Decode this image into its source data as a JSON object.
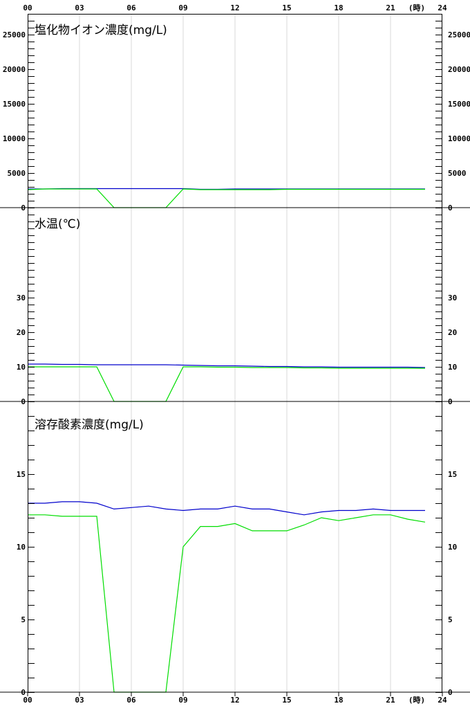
{
  "chart_data": [
    {
      "type": "line",
      "title": "塩化物イオン濃度(mg/L)",
      "ylim": [
        0,
        28000
      ],
      "yticks": [
        "0",
        "5000",
        "10000",
        "15000",
        "20000",
        "25000"
      ],
      "x_unit": "(時)",
      "series": [
        {
          "color": "#0000cc",
          "x": [
            0,
            1,
            2,
            3,
            4,
            5,
            6,
            7,
            8,
            9,
            10,
            11,
            12,
            13,
            14,
            15,
            16,
            17,
            18,
            19,
            20,
            21,
            22,
            23
          ],
          "values": [
            2700,
            2700,
            2750,
            2750,
            2750,
            2750,
            2750,
            2750,
            2750,
            2750,
            2650,
            2650,
            2700,
            2700,
            2700,
            2700,
            2700,
            2700,
            2700,
            2700,
            2700,
            2700,
            2700,
            2700
          ]
        },
        {
          "color": "#00dd00",
          "x": [
            0,
            1,
            2,
            3,
            4,
            5,
            6,
            7,
            8,
            9,
            10,
            11,
            12,
            13,
            14,
            15,
            16,
            17,
            18,
            19,
            20,
            21,
            22,
            23
          ],
          "values": [
            2600,
            2700,
            2700,
            2700,
            2700,
            0,
            0,
            0,
            0,
            2700,
            2600,
            2600,
            2600,
            2600,
            2600,
            2650,
            2650,
            2650,
            2650,
            2650,
            2650,
            2650,
            2650,
            2650
          ]
        }
      ]
    },
    {
      "type": "line",
      "title": "水温(℃)",
      "ylim": [
        0,
        56
      ],
      "yticks": [
        "0",
        "10",
        "20",
        "30"
      ],
      "x_unit": "(時)",
      "series": [
        {
          "color": "#0000cc",
          "x": [
            0,
            1,
            2,
            3,
            4,
            5,
            6,
            7,
            8,
            9,
            10,
            11,
            12,
            13,
            14,
            15,
            16,
            17,
            18,
            19,
            20,
            21,
            22,
            23
          ],
          "values": [
            10.8,
            10.8,
            10.7,
            10.7,
            10.6,
            10.6,
            10.6,
            10.6,
            10.6,
            10.5,
            10.4,
            10.3,
            10.3,
            10.2,
            10.1,
            10.1,
            10.0,
            10.0,
            9.9,
            9.9,
            9.9,
            9.9,
            9.9,
            9.8
          ]
        },
        {
          "color": "#00dd00",
          "x": [
            0,
            1,
            2,
            3,
            4,
            5,
            6,
            7,
            8,
            9,
            10,
            11,
            12,
            13,
            14,
            15,
            16,
            17,
            18,
            19,
            20,
            21,
            22,
            23
          ],
          "values": [
            10.0,
            10.0,
            10.0,
            10.0,
            10.0,
            0,
            0,
            0,
            0,
            10.0,
            10.0,
            9.9,
            9.9,
            9.8,
            9.8,
            9.8,
            9.7,
            9.7,
            9.6,
            9.6,
            9.6,
            9.6,
            9.6,
            9.6
          ]
        }
      ]
    },
    {
      "type": "line",
      "title": "溶存酸素濃度(mg/L)",
      "ylim": [
        0,
        20
      ],
      "yticks": [
        "0",
        "5",
        "10",
        "15"
      ],
      "x_unit": "(時)",
      "series": [
        {
          "color": "#0000cc",
          "x": [
            0,
            1,
            2,
            3,
            4,
            5,
            6,
            7,
            8,
            9,
            10,
            11,
            12,
            13,
            14,
            15,
            16,
            17,
            18,
            19,
            20,
            21,
            22,
            23
          ],
          "values": [
            13.0,
            13.0,
            13.1,
            13.1,
            13.0,
            12.6,
            12.7,
            12.8,
            12.6,
            12.5,
            12.6,
            12.6,
            12.8,
            12.6,
            12.6,
            12.4,
            12.2,
            12.4,
            12.5,
            12.5,
            12.6,
            12.5,
            12.5,
            12.5
          ]
        },
        {
          "color": "#00dd00",
          "x": [
            0,
            1,
            2,
            3,
            4,
            5,
            6,
            7,
            8,
            9,
            10,
            11,
            12,
            13,
            14,
            15,
            16,
            17,
            18,
            19,
            20,
            21,
            22,
            23
          ],
          "values": [
            12.2,
            12.2,
            12.1,
            12.1,
            12.1,
            0,
            0,
            0,
            0,
            10.0,
            11.4,
            11.4,
            11.6,
            11.1,
            11.1,
            11.1,
            11.5,
            12.0,
            11.8,
            12.0,
            12.2,
            12.2,
            11.9,
            11.7
          ]
        }
      ]
    }
  ],
  "x_axis": {
    "ticks": [
      "00",
      "03",
      "06",
      "09",
      "12",
      "15",
      "18",
      "21",
      "24"
    ],
    "unit": "(時)"
  }
}
